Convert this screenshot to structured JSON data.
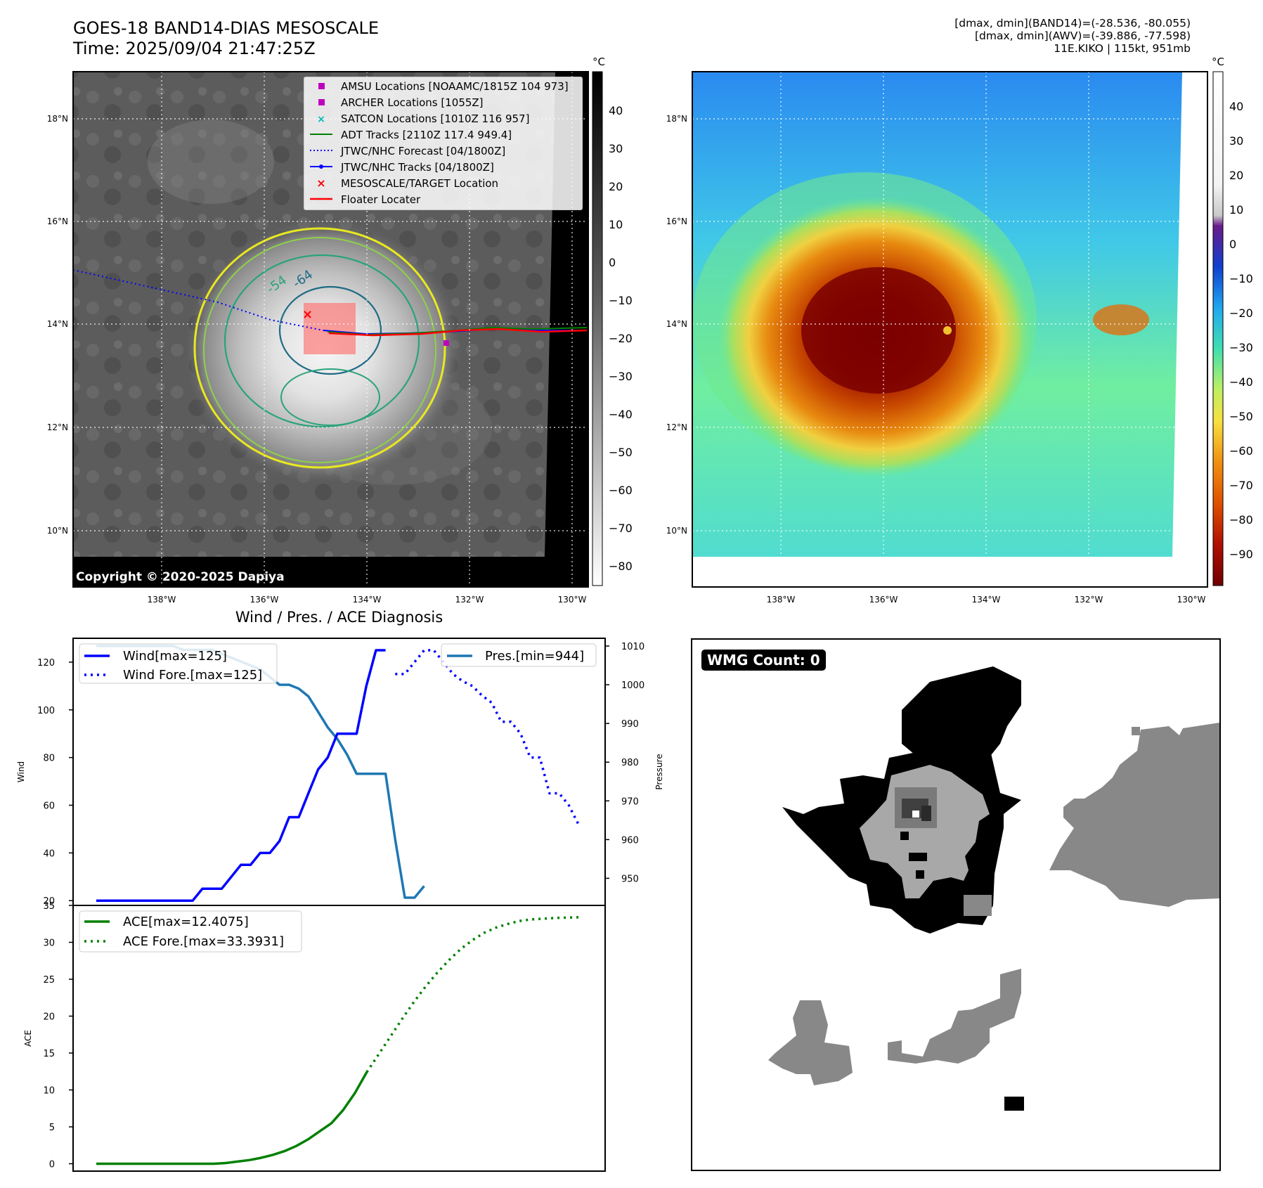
{
  "header": {
    "title_line1": "GOES-18 BAND14-DIAS MESOSCALE",
    "title_line2": "Time: 2025/09/04 21:47:25Z",
    "stats_line1": "[dmax, dmin](BAND14)=(-28.536, -80.055)",
    "stats_line2": "[dmax, dmin](AWV)=(-39.886, -77.598)",
    "stats_line3": "11E.KIKO | 115kt, 951mb"
  },
  "map_axes": {
    "lon_labels": [
      "138°W",
      "136°W",
      "134°W",
      "132°W",
      "130°W"
    ],
    "lat_labels": [
      "18°N",
      "16°N",
      "14°N",
      "12°N",
      "10°N"
    ]
  },
  "left_map": {
    "colorbar_unit": "°C",
    "colorbar_ticks": [
      "40",
      "30",
      "20",
      "10",
      "0",
      "−10",
      "−20",
      "−30",
      "−40",
      "−50",
      "−60",
      "−70",
      "−80"
    ],
    "contour_labels": [
      "-54",
      "-64"
    ],
    "copyright": "Copyright © 2020-2025 Dapiya",
    "legend": [
      {
        "label": "AMSU Locations [NOAAMC/1815Z 104 973]",
        "color": "#c000c0",
        "symbol": "square"
      },
      {
        "label": "ARCHER Locations [1055Z]",
        "color": "#c000c0",
        "symbol": "square"
      },
      {
        "label": "SATCON Locations [1010Z 116 957]",
        "color": "#00b8b8",
        "symbol": "x"
      },
      {
        "label": "ADT Tracks [2110Z 117.4 949.4]",
        "color": "#008000",
        "symbol": "line"
      },
      {
        "label": "JTWC/NHC Forecast [04/1800Z]",
        "color": "#0000ff",
        "symbol": "dotted"
      },
      {
        "label": "JTWC/NHC Tracks [04/1800Z]",
        "color": "#0000ff",
        "symbol": "line-dot"
      },
      {
        "label": "MESOSCALE/TARGET Location",
        "color": "#ff0000",
        "symbol": "x"
      },
      {
        "label": "Floater Locater",
        "color": "#ff0000",
        "symbol": "line"
      }
    ]
  },
  "right_map": {
    "colorbar_unit": "°C",
    "colorbar_ticks": [
      "40",
      "30",
      "20",
      "10",
      "0",
      "−10",
      "−20",
      "−30",
      "−40",
      "−50",
      "−60",
      "−70",
      "−80",
      "−90"
    ]
  },
  "diagnosis": {
    "title": "Wind / Pres. / ACE Diagnosis",
    "wind_axis_label": "Wind",
    "pressure_axis_label": "Pressure",
    "ace_axis_label": "ACE",
    "wind_legend": "Wind[max=125]",
    "wind_fore_legend": "Wind Fore.[max=125]",
    "pres_legend": "Pres.[min=944]",
    "ace_legend": "ACE[max=12.4075]",
    "ace_fore_legend": "ACE Fore.[max=33.3931]"
  },
  "wmg": {
    "label": "WMG Count: 0"
  },
  "chart_data": [
    {
      "type": "line",
      "title": "Wind / Pres. / ACE Diagnosis",
      "ylabel": "Wind",
      "ylim": [
        18,
        130
      ],
      "y_ticks": [
        20,
        40,
        60,
        80,
        100,
        120
      ],
      "series": [
        {
          "name": "Wind[max=125]",
          "color": "#0000ff",
          "style": "solid",
          "x": [
            0,
            1,
            2,
            3,
            4,
            5,
            6,
            7,
            8,
            9,
            10,
            11,
            12,
            13,
            14,
            15,
            16,
            17,
            18,
            19,
            20,
            21,
            22,
            23,
            24,
            25,
            26,
            27,
            28,
            29,
            30
          ],
          "values": [
            20,
            20,
            20,
            20,
            20,
            20,
            20,
            20,
            20,
            20,
            20,
            25,
            25,
            25,
            30,
            35,
            35,
            40,
            40,
            45,
            55,
            55,
            65,
            75,
            80,
            90,
            90,
            90,
            110,
            125,
            125
          ]
        },
        {
          "name": "Wind Fore.[max=125]",
          "color": "#0000ff",
          "style": "dotted",
          "x": [
            31,
            32,
            33,
            34,
            35,
            36,
            37,
            38,
            39,
            40,
            41,
            42,
            43,
            44,
            45,
            46,
            47,
            48,
            49,
            50
          ],
          "values": [
            115,
            115,
            120,
            125,
            125,
            120,
            115,
            112,
            110,
            106,
            103,
            95,
            95,
            90,
            80,
            80,
            65,
            65,
            60,
            52
          ]
        }
      ]
    },
    {
      "type": "line",
      "ylabel": "Pressure",
      "ylim": [
        943,
        1012
      ],
      "y_ticks": [
        950,
        960,
        970,
        980,
        990,
        1000,
        1010
      ],
      "series": [
        {
          "name": "Pres.[min=944]",
          "color": "#1f77b4",
          "style": "solid",
          "x": [
            0,
            1,
            2,
            3,
            4,
            5,
            6,
            7,
            8,
            9,
            10,
            11,
            12,
            13,
            14,
            15,
            16,
            17,
            18,
            19,
            20,
            21,
            22,
            23,
            24,
            25,
            26,
            27,
            28,
            29,
            30,
            31,
            32,
            33,
            34
          ],
          "values": [
            1010,
            1010,
            1010,
            1010,
            1010,
            1010,
            1010,
            1010,
            1010,
            1009,
            1009,
            1009,
            1009,
            1008,
            1007,
            1006,
            1005,
            1004,
            1002,
            1000,
            1000,
            999,
            997,
            993,
            989,
            986,
            982,
            977,
            977,
            977,
            977,
            960,
            945,
            945,
            948
          ]
        }
      ]
    },
    {
      "type": "line",
      "ylabel": "ACE",
      "ylim": [
        -1,
        35
      ],
      "y_ticks": [
        0,
        5,
        10,
        15,
        20,
        25,
        30,
        35
      ],
      "series": [
        {
          "name": "ACE[max=12.4075]",
          "color": "#008000",
          "style": "solid",
          "x": [
            0,
            3,
            6,
            9,
            12,
            15,
            18,
            21,
            24,
            27,
            30,
            33,
            36,
            39,
            42,
            45,
            48,
            51,
            54,
            57,
            60,
            63,
            66,
            69
          ],
          "values": [
            0,
            0,
            0,
            0,
            0,
            0,
            0,
            0,
            0,
            0,
            0,
            0.1,
            0.3,
            0.5,
            0.8,
            1.2,
            1.7,
            2.4,
            3.3,
            4.4,
            5.5,
            7.3,
            9.6,
            12.4
          ]
        },
        {
          "name": "ACE Fore.[max=33.3931]",
          "color": "#008000",
          "style": "dotted",
          "x": [
            69,
            72,
            75,
            78,
            81,
            84,
            87,
            90,
            93,
            96,
            99,
            102,
            105,
            108,
            111,
            114,
            117,
            120,
            123
          ],
          "values": [
            12.4,
            14.8,
            17.2,
            19.6,
            21.9,
            24.0,
            25.9,
            27.6,
            29.1,
            30.3,
            31.3,
            32.0,
            32.5,
            32.9,
            33.1,
            33.2,
            33.3,
            33.35,
            33.39
          ]
        }
      ]
    }
  ]
}
